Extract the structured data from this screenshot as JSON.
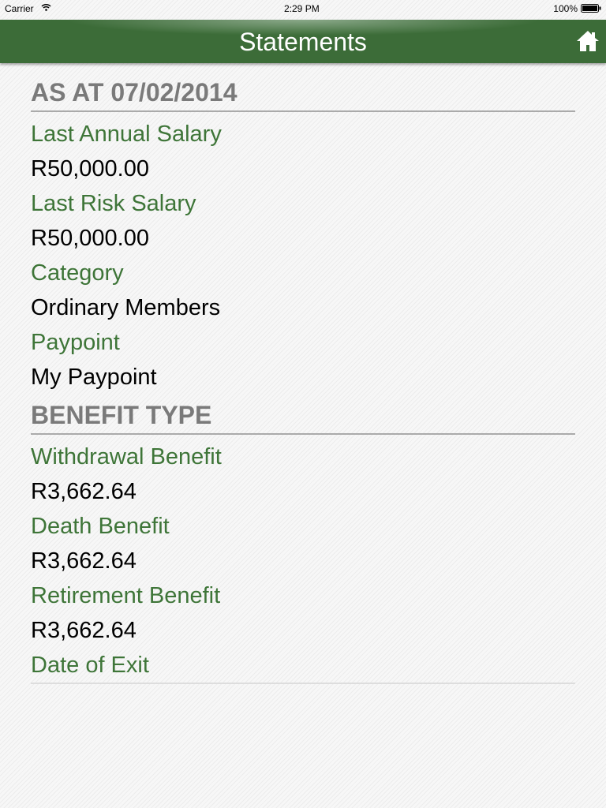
{
  "status_bar": {
    "carrier": "Carrier",
    "time": "2:29 PM",
    "battery": "100%"
  },
  "nav": {
    "title": "Statements",
    "home_icon": "home-icon"
  },
  "colors": {
    "nav": "#3c6c38",
    "label": "#3e7538",
    "heading": "#7a7a7a"
  },
  "section1": {
    "heading": "AS AT 07/02/2014",
    "fields": [
      {
        "label": "Last Annual Salary",
        "value": "R50,000.00"
      },
      {
        "label": "Last Risk Salary",
        "value": "R50,000.00"
      },
      {
        "label": "Category",
        "value": "Ordinary Members"
      },
      {
        "label": "Paypoint",
        "value": "My Paypoint"
      }
    ]
  },
  "section2": {
    "heading": "BENEFIT TYPE",
    "fields": [
      {
        "label": "Withdrawal Benefit",
        "value": "R3,662.64"
      },
      {
        "label": "Death Benefit",
        "value": "R3,662.64"
      },
      {
        "label": "Retirement Benefit",
        "value": "R3,662.64"
      },
      {
        "label": "Date of Exit",
        "value": ""
      }
    ]
  }
}
